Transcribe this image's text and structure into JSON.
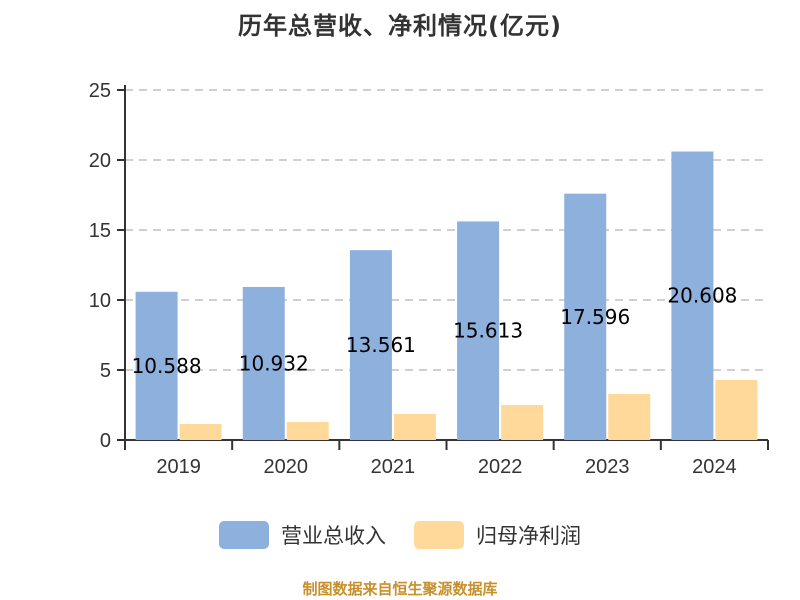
{
  "title": "历年总营收、净利情况(亿元)",
  "source_note": "制图数据来自恒生聚源数据库",
  "legend": [
    {
      "label": "营业总收入",
      "color": "#8eb0dd"
    },
    {
      "label": "归母净利润",
      "color": "#ffd999"
    }
  ],
  "chart_data": {
    "type": "bar",
    "title": "历年总营收、净利情况(亿元)",
    "xlabel": "",
    "ylabel": "",
    "ylim": [
      0,
      25
    ],
    "yticks": [
      0,
      5,
      10,
      15,
      20,
      25
    ],
    "grid": true,
    "legend_position": "bottom",
    "categories": [
      "2019",
      "2020",
      "2021",
      "2022",
      "2023",
      "2024"
    ],
    "series": [
      {
        "name": "营业总收入",
        "color": "#8eb0dd",
        "values": [
          10.588,
          10.932,
          13.561,
          15.613,
          17.596,
          20.608
        ],
        "labels": [
          "10.588",
          "10.932",
          "13.561",
          "15.613",
          "17.596",
          "20.608"
        ]
      },
      {
        "name": "归母净利润",
        "color": "#ffd999",
        "values": [
          1.14,
          1.29,
          1.86,
          2.5,
          3.29,
          4.29
        ]
      }
    ],
    "annotations": [
      "制图数据来自恒生聚源数据库"
    ]
  }
}
